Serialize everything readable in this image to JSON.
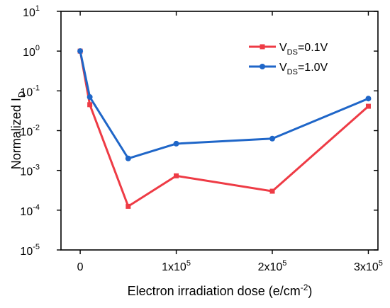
{
  "chart_data": {
    "type": "line",
    "title": "",
    "xlabel": "Electron irradiation dose (e/cm",
    "xlabel_sup": "-2",
    "xlabel_tail": ")",
    "ylabel": "Normalized I",
    "ylabel_sub": "D",
    "x_scale": "linear",
    "y_scale": "log",
    "xlim": [
      -20000,
      310000
    ],
    "ylim": [
      1e-05,
      10
    ],
    "grid": false,
    "legend_position": "top-right",
    "x_ticks": [
      {
        "value": 0,
        "mantissa": "0",
        "exponent": ""
      },
      {
        "value": 100000,
        "mantissa": "1x10",
        "exponent": "5"
      },
      {
        "value": 200000,
        "mantissa": "2x10",
        "exponent": "5"
      },
      {
        "value": 300000,
        "mantissa": "3x10",
        "exponent": "5"
      }
    ],
    "y_ticks": [
      {
        "value": 1e-05,
        "base": "10",
        "exponent": "-5"
      },
      {
        "value": 0.0001,
        "base": "10",
        "exponent": "-4"
      },
      {
        "value": 0.001,
        "base": "10",
        "exponent": "-3"
      },
      {
        "value": 0.01,
        "base": "10",
        "exponent": "-2"
      },
      {
        "value": 0.1,
        "base": "10",
        "exponent": "-1"
      },
      {
        "value": 1,
        "base": "10",
        "exponent": "0"
      },
      {
        "value": 10,
        "base": "10",
        "exponent": "1"
      }
    ],
    "series": [
      {
        "name_main": "V",
        "name_sub": "DS",
        "name_tail": "=0.1V",
        "color": "#ee3b45",
        "marker": "square",
        "x": [
          0,
          10000,
          50000,
          100000,
          200000,
          300000
        ],
        "y": [
          1.0,
          0.045,
          0.000125,
          0.00073,
          0.0003,
          0.041
        ]
      },
      {
        "name_main": "V",
        "name_sub": "DS",
        "name_tail": "=1.0V",
        "color": "#1f66c8",
        "marker": "circle",
        "x": [
          0,
          10000,
          50000,
          100000,
          200000,
          300000
        ],
        "y": [
          1.0,
          0.07,
          0.002,
          0.0047,
          0.0063,
          0.064
        ]
      }
    ]
  }
}
